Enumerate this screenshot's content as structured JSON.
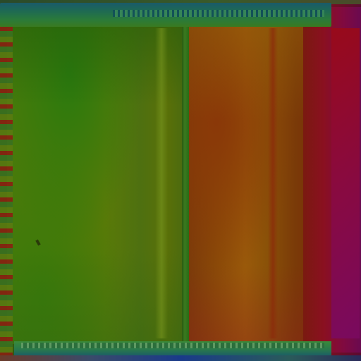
{
  "image": {
    "description_colors": {
      "left_panel": "#4a7a0a",
      "right_panel": "#8a4a08",
      "far_right_strip": "#800a40",
      "top_bar": "#1e6a52",
      "bottom_bar": "#2a7a4a"
    }
  }
}
